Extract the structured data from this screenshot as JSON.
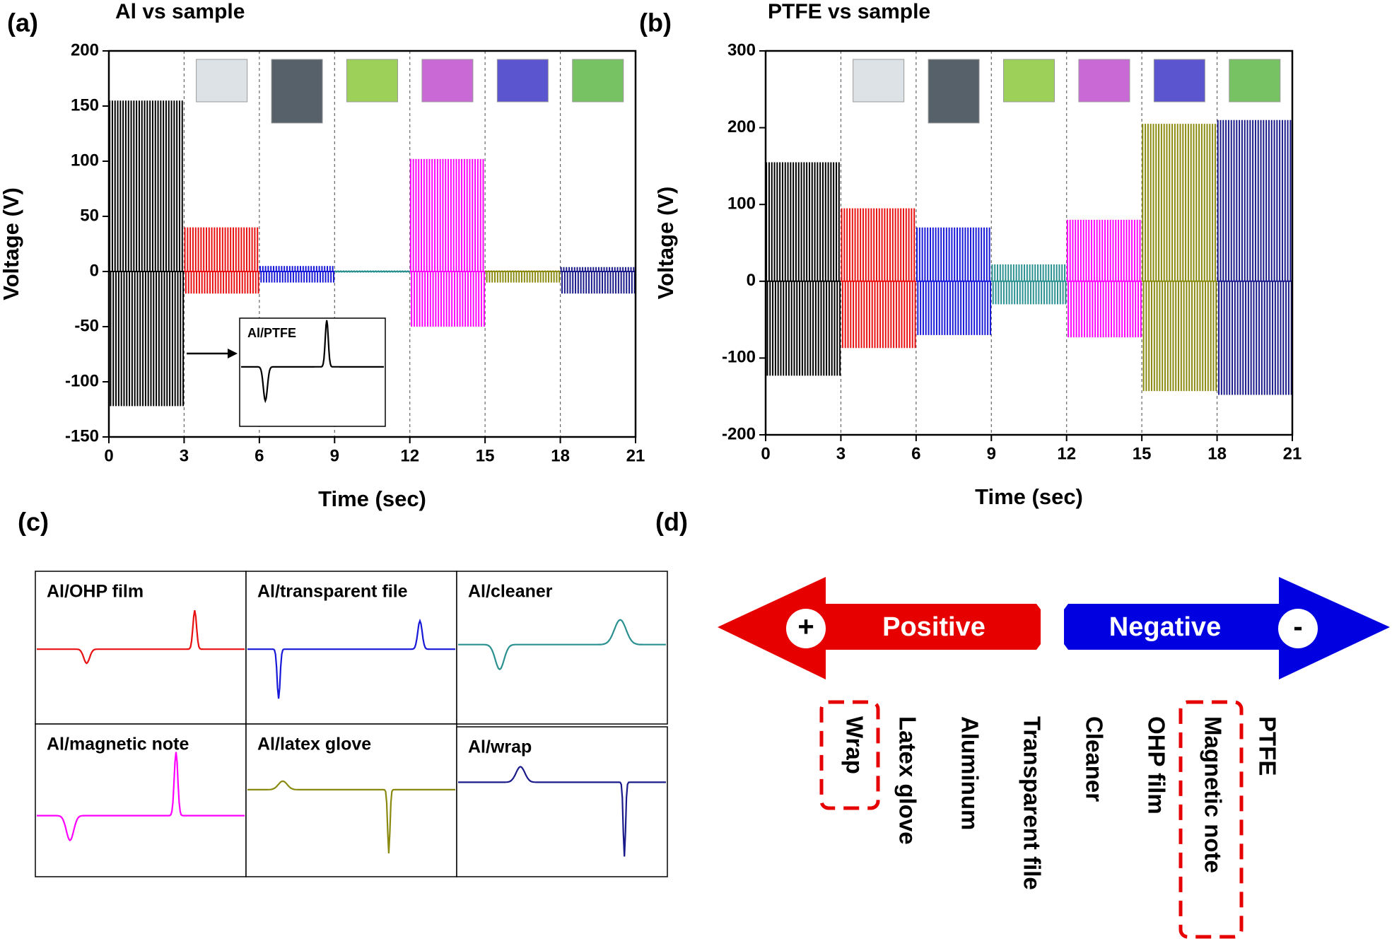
{
  "chart_data": [
    {
      "type": "spike",
      "panel_label": "(a)",
      "title": "Al vs sample",
      "xlabel": "Time (sec)",
      "ylabel": "Voltage (V)",
      "xlim": [
        0,
        21
      ],
      "xticks": [
        0,
        3,
        6,
        9,
        12,
        15,
        18,
        21
      ],
      "ylim": [
        -150,
        200
      ],
      "yticks": [
        -150,
        -100,
        -50,
        0,
        50,
        100,
        150,
        200
      ],
      "inset_label": "Al/PTFE",
      "series": [
        {
          "color": "#000000",
          "values": [
            155,
            -122
          ]
        },
        {
          "color": "#e81010",
          "values": [
            40,
            -20
          ]
        },
        {
          "color": "#1818d8",
          "values": [
            5,
            -10
          ]
        },
        {
          "color": "#2a9090",
          "values": [
            1,
            -1
          ]
        },
        {
          "color": "#ff00ff",
          "values": [
            102,
            -50
          ]
        },
        {
          "color": "#8a8a10",
          "values": [
            1,
            -10
          ]
        },
        {
          "color": "#1a1a8a",
          "values": [
            4,
            -20
          ]
        }
      ]
    },
    {
      "type": "spike",
      "panel_label": "(b)",
      "title": "PTFE vs sample",
      "xlabel": "Time (sec)",
      "ylabel": "Voltage (V)",
      "xlim": [
        0,
        21
      ],
      "xticks": [
        0,
        3,
        6,
        9,
        12,
        15,
        18,
        21
      ],
      "ylim": [
        -200,
        300
      ],
      "yticks": [
        -200,
        -100,
        0,
        100,
        200,
        300
      ],
      "series": [
        {
          "color": "#000000",
          "values": [
            155,
            -123
          ]
        },
        {
          "color": "#e81010",
          "values": [
            95,
            -87
          ]
        },
        {
          "color": "#1818d8",
          "values": [
            70,
            -70
          ]
        },
        {
          "color": "#2a9090",
          "values": [
            22,
            -30
          ]
        },
        {
          "color": "#ff00ff",
          "values": [
            80,
            -73
          ]
        },
        {
          "color": "#8a8a10",
          "values": [
            205,
            -143
          ]
        },
        {
          "color": "#1a1a8a",
          "values": [
            210,
            -148
          ]
        }
      ]
    }
  ],
  "panel_c": {
    "label": "(c)",
    "labels": [
      "Al/OHP film",
      "Al/transparent file",
      "Al/cleaner",
      "Al/magnetic note",
      "Al/latex glove",
      "Al/wrap"
    ],
    "colors": [
      "#e81010",
      "#1818d8",
      "#2a9090",
      "#ff00ff",
      "#8a8a10",
      "#1a1a8a"
    ]
  },
  "panel_d": {
    "label": "(d)",
    "positive": "Positive",
    "negative": "Negative",
    "plus": "+",
    "minus": "-",
    "series": [
      "Wrap",
      "Latex glove",
      "Aluminum",
      "Transparent file",
      "Cleaner",
      "OHP film",
      "Magnetic note",
      "PTFE"
    ]
  }
}
